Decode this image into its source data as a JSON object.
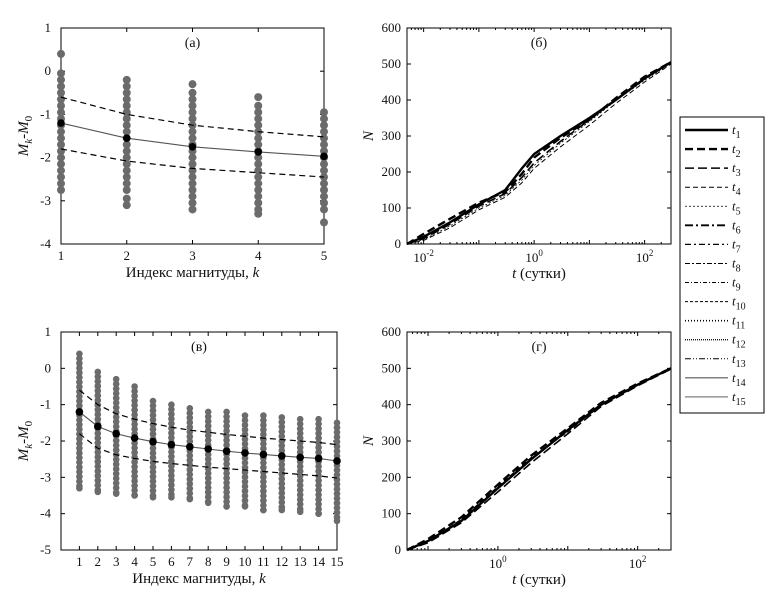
{
  "chart_data": [
    {
      "id": "a",
      "type": "scatter",
      "panel_label": "(а)",
      "xlabel": "Индекс магнитуды, k",
      "ylabel": "Mk-M0",
      "xlim": [
        1,
        5
      ],
      "ylim": [
        -4,
        1
      ],
      "x_ticks": [
        1,
        2,
        3,
        4,
        5
      ],
      "y_ticks": [
        -4,
        -3,
        -2,
        -1,
        0,
        1
      ],
      "scatter_columns": [
        {
          "x": 1,
          "values": [
            0.4,
            -0.05,
            -0.2,
            -0.35,
            -0.5,
            -0.65,
            -0.8,
            -0.95,
            -1.1,
            -1.25,
            -1.4,
            -1.55,
            -1.7,
            -1.85,
            -2.0,
            -2.15,
            -2.3,
            -2.45,
            -2.6,
            -2.75
          ]
        },
        {
          "x": 2,
          "values": [
            -0.2,
            -0.35,
            -0.5,
            -0.65,
            -0.8,
            -0.95,
            -1.1,
            -1.25,
            -1.4,
            -1.55,
            -1.7,
            -1.85,
            -2.0,
            -2.15,
            -2.3,
            -2.45,
            -2.6,
            -2.75,
            -2.95,
            -3.1
          ]
        },
        {
          "x": 3,
          "values": [
            -0.3,
            -0.5,
            -0.65,
            -0.8,
            -0.95,
            -1.1,
            -1.25,
            -1.4,
            -1.55,
            -1.7,
            -1.85,
            -2.0,
            -2.15,
            -2.3,
            -2.45,
            -2.6,
            -2.75,
            -2.9,
            -3.05,
            -3.2
          ]
        },
        {
          "x": 4,
          "values": [
            -0.6,
            -0.8,
            -0.95,
            -1.1,
            -1.25,
            -1.4,
            -1.55,
            -1.7,
            -1.85,
            -2.0,
            -2.15,
            -2.3,
            -2.45,
            -2.6,
            -2.75,
            -2.9,
            -3.05,
            -3.2,
            -3.3
          ]
        },
        {
          "x": 5,
          "values": [
            -0.95,
            -1.1,
            -1.25,
            -1.4,
            -1.55,
            -1.7,
            -1.85,
            -2.0,
            -2.15,
            -2.3,
            -2.45,
            -2.6,
            -2.75,
            -2.9,
            -3.05,
            -3.2,
            -3.5
          ]
        }
      ],
      "series": [
        {
          "x": [
            1,
            2,
            3,
            4,
            5
          ],
          "values": [
            -1.2,
            -1.55,
            -1.75,
            -1.87,
            -1.97
          ],
          "style": "solid-markers"
        },
        {
          "x": [
            1,
            2,
            3,
            4,
            5
          ],
          "values": [
            -0.6,
            -1.0,
            -1.25,
            -1.4,
            -1.52
          ],
          "style": "dashed"
        },
        {
          "x": [
            1,
            2,
            3,
            4,
            5
          ],
          "values": [
            -1.8,
            -2.08,
            -2.25,
            -2.35,
            -2.45
          ],
          "style": "dashed"
        }
      ]
    },
    {
      "id": "b",
      "type": "line",
      "panel_label": "(б)",
      "xlabel": "t (сутки)",
      "ylabel": "N",
      "xscale": "log",
      "xlim": [
        0.005,
        300
      ],
      "ylim": [
        0,
        600
      ],
      "x_ticks": [
        "10-2",
        "100",
        "102"
      ],
      "y_ticks": [
        0,
        100,
        200,
        300,
        400,
        500,
        600
      ],
      "series": [
        {
          "x": [
            0.005,
            0.01,
            0.03,
            0.1,
            0.3,
            0.6,
            1,
            3,
            10,
            30,
            100,
            300
          ],
          "values": [
            0,
            20,
            60,
            110,
            150,
            210,
            250,
            300,
            350,
            400,
            460,
            505
          ]
        },
        {
          "x": [
            0.005,
            0.01,
            0.03,
            0.1,
            0.3,
            0.6,
            1,
            3,
            10,
            30,
            100,
            300
          ],
          "values": [
            0,
            28,
            70,
            115,
            145,
            195,
            240,
            295,
            345,
            405,
            465,
            505
          ]
        },
        {
          "x": [
            0.005,
            0.01,
            0.03,
            0.1,
            0.3,
            0.6,
            1,
            3,
            10,
            30,
            100,
            300
          ],
          "values": [
            0,
            15,
            55,
            105,
            140,
            185,
            225,
            285,
            345,
            400,
            460,
            505
          ]
        },
        {
          "x": [
            0.005,
            0.01,
            0.03,
            0.1,
            0.3,
            0.6,
            1,
            3,
            10,
            30,
            100,
            300
          ],
          "values": [
            0,
            10,
            45,
            95,
            130,
            170,
            210,
            270,
            330,
            390,
            450,
            500
          ]
        },
        {
          "x": [
            0.005,
            0.01,
            0.03,
            0.1,
            0.3,
            0.6,
            1,
            3,
            10,
            30,
            100,
            300
          ],
          "values": [
            0,
            12,
            50,
            100,
            135,
            178,
            218,
            280,
            340,
            398,
            455,
            502
          ]
        }
      ]
    },
    {
      "id": "v",
      "type": "scatter",
      "panel_label": "(в)",
      "xlabel": "Индекс магнитуды, k",
      "ylabel": "Mk-M0",
      "xlim": [
        0,
        15
      ],
      "ylim": [
        -5,
        1
      ],
      "x_ticks": [
        1,
        2,
        3,
        4,
        5,
        6,
        7,
        8,
        9,
        10,
        11,
        12,
        13,
        14,
        15
      ],
      "y_ticks": [
        -5,
        -4,
        -3,
        -2,
        -1,
        0,
        1
      ],
      "scatter_ranges": [
        {
          "x": 1,
          "top": 0.4,
          "bottom": -3.3
        },
        {
          "x": 2,
          "top": -0.1,
          "bottom": -3.4
        },
        {
          "x": 3,
          "top": -0.3,
          "bottom": -3.45
        },
        {
          "x": 4,
          "top": -0.5,
          "bottom": -3.5
        },
        {
          "x": 5,
          "top": -0.9,
          "bottom": -3.55
        },
        {
          "x": 6,
          "top": -1.0,
          "bottom": -3.55
        },
        {
          "x": 7,
          "top": -1.1,
          "bottom": -3.6
        },
        {
          "x": 8,
          "top": -1.2,
          "bottom": -3.7
        },
        {
          "x": 9,
          "top": -1.2,
          "bottom": -3.8
        },
        {
          "x": 10,
          "top": -1.3,
          "bottom": -3.8
        },
        {
          "x": 11,
          "top": -1.3,
          "bottom": -3.9
        },
        {
          "x": 12,
          "top": -1.35,
          "bottom": -3.9
        },
        {
          "x": 13,
          "top": -1.4,
          "bottom": -3.95
        },
        {
          "x": 14,
          "top": -1.4,
          "bottom": -4.0
        },
        {
          "x": 15,
          "top": -1.5,
          "bottom": -4.2
        }
      ],
      "series": [
        {
          "x": [
            1,
            2,
            3,
            4,
            5,
            6,
            7,
            8,
            9,
            10,
            11,
            12,
            13,
            14,
            15
          ],
          "values": [
            -1.2,
            -1.6,
            -1.8,
            -1.92,
            -2.02,
            -2.1,
            -2.16,
            -2.22,
            -2.28,
            -2.33,
            -2.37,
            -2.41,
            -2.45,
            -2.48,
            -2.55
          ],
          "style": "solid-markers"
        },
        {
          "x": [
            1,
            2,
            3,
            4,
            5,
            6,
            7,
            8,
            9,
            10,
            11,
            12,
            13,
            14,
            15
          ],
          "values": [
            -0.6,
            -1.0,
            -1.25,
            -1.4,
            -1.52,
            -1.62,
            -1.7,
            -1.76,
            -1.82,
            -1.87,
            -1.92,
            -1.96,
            -2.0,
            -2.04,
            -2.1
          ],
          "style": "dashed"
        },
        {
          "x": [
            1,
            2,
            3,
            4,
            5,
            6,
            7,
            8,
            9,
            10,
            11,
            12,
            13,
            14,
            15
          ],
          "values": [
            -1.8,
            -2.2,
            -2.38,
            -2.48,
            -2.56,
            -2.62,
            -2.67,
            -2.72,
            -2.76,
            -2.8,
            -2.84,
            -2.88,
            -2.92,
            -2.96,
            -3.02
          ],
          "style": "dashed"
        }
      ]
    },
    {
      "id": "g",
      "type": "line",
      "panel_label": "(г)",
      "xlabel": "t (сутки)",
      "ylabel": "N",
      "xscale": "log",
      "xlim": [
        0.05,
        300
      ],
      "ylim": [
        0,
        600
      ],
      "x_ticks": [
        "100",
        "102"
      ],
      "y_ticks": [
        0,
        100,
        200,
        300,
        400,
        500,
        600
      ],
      "series": [
        {
          "x": [
            0.05,
            0.1,
            0.3,
            1,
            3,
            10,
            30,
            100,
            300
          ],
          "values": [
            0,
            25,
            80,
            170,
            250,
            330,
            400,
            455,
            500
          ]
        },
        {
          "x": [
            0.05,
            0.1,
            0.3,
            1,
            3,
            10,
            30,
            100,
            300
          ],
          "values": [
            0,
            30,
            90,
            180,
            260,
            335,
            405,
            458,
            500
          ]
        },
        {
          "x": [
            0.05,
            0.1,
            0.3,
            1,
            3,
            10,
            30,
            100,
            300
          ],
          "values": [
            0,
            20,
            75,
            160,
            240,
            320,
            395,
            452,
            498
          ]
        },
        {
          "x": [
            0.05,
            0.1,
            0.3,
            1,
            3,
            10,
            30,
            100,
            300
          ],
          "values": [
            0,
            22,
            85,
            175,
            255,
            325,
            398,
            455,
            500
          ]
        }
      ]
    }
  ],
  "legend": {
    "placement": "right",
    "entries": [
      {
        "base": "t",
        "sub": "1",
        "dash": "solid",
        "width": 2.4
      },
      {
        "base": "t",
        "sub": "2",
        "dash": "8 4",
        "width": 2.4
      },
      {
        "base": "t",
        "sub": "3",
        "dash": "9 4",
        "width": 1.6
      },
      {
        "base": "t",
        "sub": "4",
        "dash": "5 3",
        "width": 1.0
      },
      {
        "base": "t",
        "sub": "5",
        "dash": "2 2",
        "width": 0.8
      },
      {
        "base": "t",
        "sub": "6",
        "dash": "8 3 2 3",
        "width": 1.8
      },
      {
        "base": "t",
        "sub": "7",
        "dash": "6 3 2 3",
        "width": 1.2
      },
      {
        "base": "t",
        "sub": "8",
        "dash": "5 2 2 2",
        "width": 1.0
      },
      {
        "base": "t",
        "sub": "9",
        "dash": "4 2 1 2",
        "width": 1.0
      },
      {
        "base": "t",
        "sub": "10",
        "dash": "3 2",
        "width": 1.0
      },
      {
        "base": "t",
        "sub": "11",
        "dash": "1 2",
        "width": 1.6
      },
      {
        "base": "t",
        "sub": "12",
        "dash": "1 1",
        "width": 1.2
      },
      {
        "base": "t",
        "sub": "13",
        "dash": "6 2 1 2 1 2",
        "width": 1.0
      },
      {
        "base": "t",
        "sub": "14",
        "dash": "solid",
        "width": 0.8
      },
      {
        "base": "t",
        "sub": "15",
        "dash": "solid",
        "width": 0.6
      }
    ]
  },
  "colors": {
    "points": "#6b6b6b",
    "lines": "#000000",
    "mean_line": "#555555"
  }
}
